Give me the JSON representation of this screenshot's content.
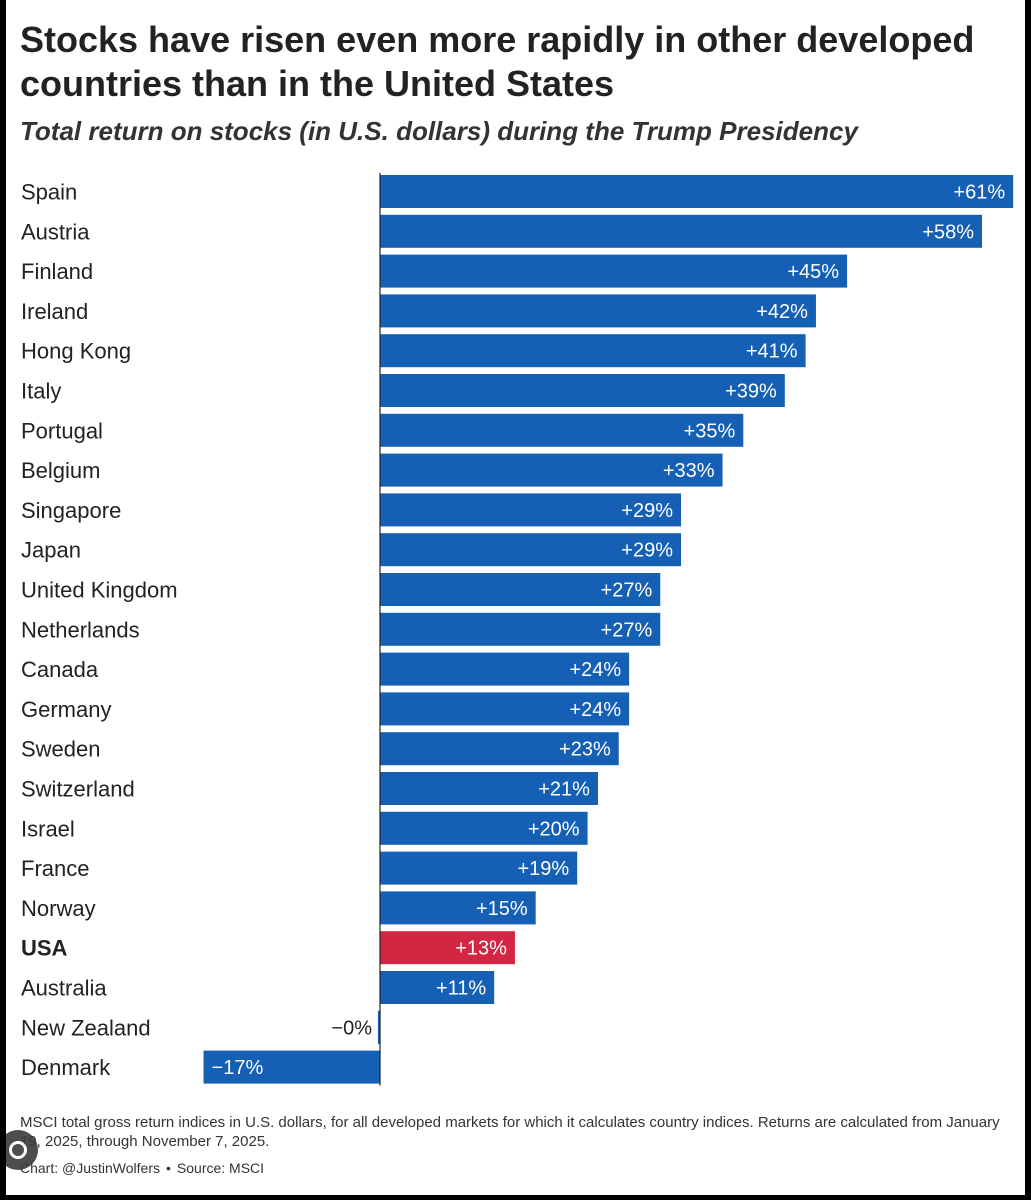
{
  "title": "Stocks have risen even more rapidly in other developed countries than in the United States",
  "subtitle": "Total return on stocks (in U.S. dollars) during the Trump Presidency",
  "footnote": "MSCI total gross return indices in U.S. dollars, for all developed markets for which it calculates country indices. Returns are calculated from January 19, 2025, through November 7, 2025.",
  "credit": {
    "chart": "Chart: @JustinWolfers",
    "separator": "•",
    "source": "Source: MSCI"
  },
  "overlay_icon": "google-lens-icon",
  "colors": {
    "bar": "#1560b4",
    "highlight": "#d32643",
    "axis": "#222222"
  },
  "chart_data": {
    "type": "bar",
    "orientation": "horizontal",
    "xlim": [
      -17,
      61
    ],
    "unit": "%",
    "highlight_category": "USA",
    "categories": [
      "Spain",
      "Austria",
      "Finland",
      "Ireland",
      "Hong Kong",
      "Italy",
      "Portugal",
      "Belgium",
      "Singapore",
      "Japan",
      "United Kingdom",
      "Netherlands",
      "Canada",
      "Germany",
      "Sweden",
      "Switzerland",
      "Israel",
      "France",
      "Norway",
      "USA",
      "Australia",
      "New Zealand",
      "Denmark"
    ],
    "values": [
      61,
      58,
      45,
      42,
      41,
      39,
      35,
      33,
      29,
      29,
      27,
      27,
      24,
      24,
      23,
      21,
      20,
      19,
      15,
      13,
      11,
      -0.2,
      -17
    ],
    "labels": [
      "+61%",
      "+58%",
      "+45%",
      "+42%",
      "+41%",
      "+39%",
      "+35%",
      "+33%",
      "+29%",
      "+29%",
      "+27%",
      "+27%",
      "+24%",
      "+24%",
      "+23%",
      "+21%",
      "+20%",
      "+19%",
      "+15%",
      "+13%",
      "+11%",
      "−0%",
      "−17%"
    ]
  }
}
